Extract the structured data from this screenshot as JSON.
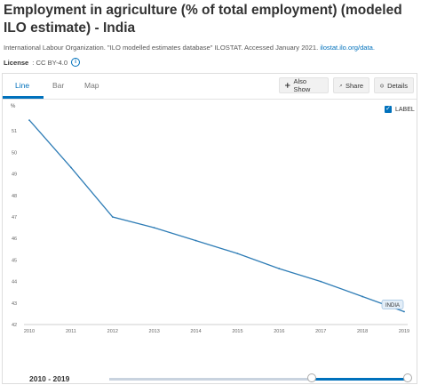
{
  "header": {
    "title": "Employment in agriculture (% of total employment) (modeled ILO estimate) - India",
    "source_text": "International Labour Organization. \"ILO modelled estimates database\" ILOSTAT. Accessed January 2021.",
    "source_link": "ilostat.ilo.org/data.",
    "license_label": "License",
    "license_value": ": CC BY-4.0"
  },
  "tabs": [
    {
      "label": "Line",
      "active": true
    },
    {
      "label": "Bar",
      "active": false
    },
    {
      "label": "Map",
      "active": false
    }
  ],
  "toolbar": {
    "also_show": "Also Show",
    "share": "Share",
    "details": "Details"
  },
  "label_toggle": {
    "label": "LABEL",
    "checked": true
  },
  "footer": {
    "range": "2010 - 2019"
  },
  "colors": {
    "accent": "#0071bc",
    "line": "#2f7db6"
  },
  "chart_data": {
    "type": "line",
    "ylabel": "%",
    "x": [
      2010,
      2011,
      2012,
      2013,
      2014,
      2015,
      2016,
      2017,
      2018,
      2019
    ],
    "series": [
      {
        "name": "INDIA",
        "values": [
          51.5,
          49.3,
          47.0,
          46.5,
          45.9,
          45.3,
          44.6,
          44.0,
          43.3,
          42.6
        ]
      }
    ],
    "ylim": [
      42,
      52
    ],
    "yticks": [
      42,
      43,
      44,
      45,
      46,
      47,
      48,
      49,
      50,
      51
    ],
    "grid": false,
    "legend": "none"
  }
}
